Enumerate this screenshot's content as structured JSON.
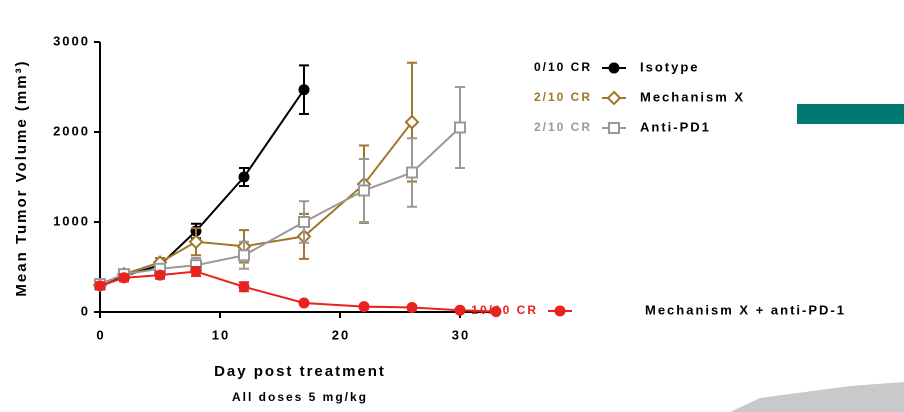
{
  "chart_data": {
    "type": "line",
    "ylabel": "Mean Tumor Volume (mm³)",
    "xlabel": "Day post treatment",
    "subtitle": "All doses 5 mg/kg",
    "xlim": [
      0,
      33
    ],
    "xticks": [
      0,
      10,
      20,
      30
    ],
    "ylim": [
      0,
      3000
    ],
    "yticks": [
      0,
      1000,
      2000,
      3000
    ],
    "series": [
      {
        "name": "Isotype",
        "annotation": "0/10 CR",
        "color": "#000000",
        "marker": "circle",
        "x": [
          0,
          2,
          5,
          8,
          12,
          17
        ],
        "values": [
          300,
          400,
          520,
          900,
          1500,
          2470
        ],
        "errors": [
          50,
          50,
          50,
          80,
          100,
          270
        ]
      },
      {
        "name": "Mechanism X",
        "annotation": "2/10 CR",
        "color": "#a0762a",
        "marker": "diamond",
        "x": [
          0,
          2,
          5,
          8,
          12,
          17,
          22,
          26
        ],
        "values": [
          300,
          420,
          550,
          780,
          730,
          840,
          1420,
          2110
        ],
        "errors": [
          50,
          50,
          50,
          150,
          180,
          250,
          430,
          660
        ]
      },
      {
        "name": "Anti-PD1",
        "annotation": "2/10 CR",
        "color": "#999999",
        "marker": "square",
        "x": [
          0,
          2,
          5,
          8,
          12,
          17,
          22,
          26,
          30
        ],
        "values": [
          310,
          420,
          480,
          520,
          630,
          1000,
          1350,
          1550,
          2050
        ],
        "errors": [
          50,
          50,
          50,
          80,
          150,
          230,
          350,
          380,
          450
        ]
      },
      {
        "name": "Mechanism X + anti-PD-1",
        "annotation": "10/10 CR",
        "color": "#e8231f",
        "marker": "circle",
        "x": [
          0,
          2,
          5,
          8,
          12,
          17,
          22,
          26,
          30,
          33
        ],
        "values": [
          290,
          380,
          410,
          450,
          280,
          100,
          60,
          50,
          20,
          5
        ],
        "errors": [
          40,
          40,
          40,
          50,
          50,
          20,
          20,
          20,
          10,
          5
        ]
      }
    ]
  }
}
